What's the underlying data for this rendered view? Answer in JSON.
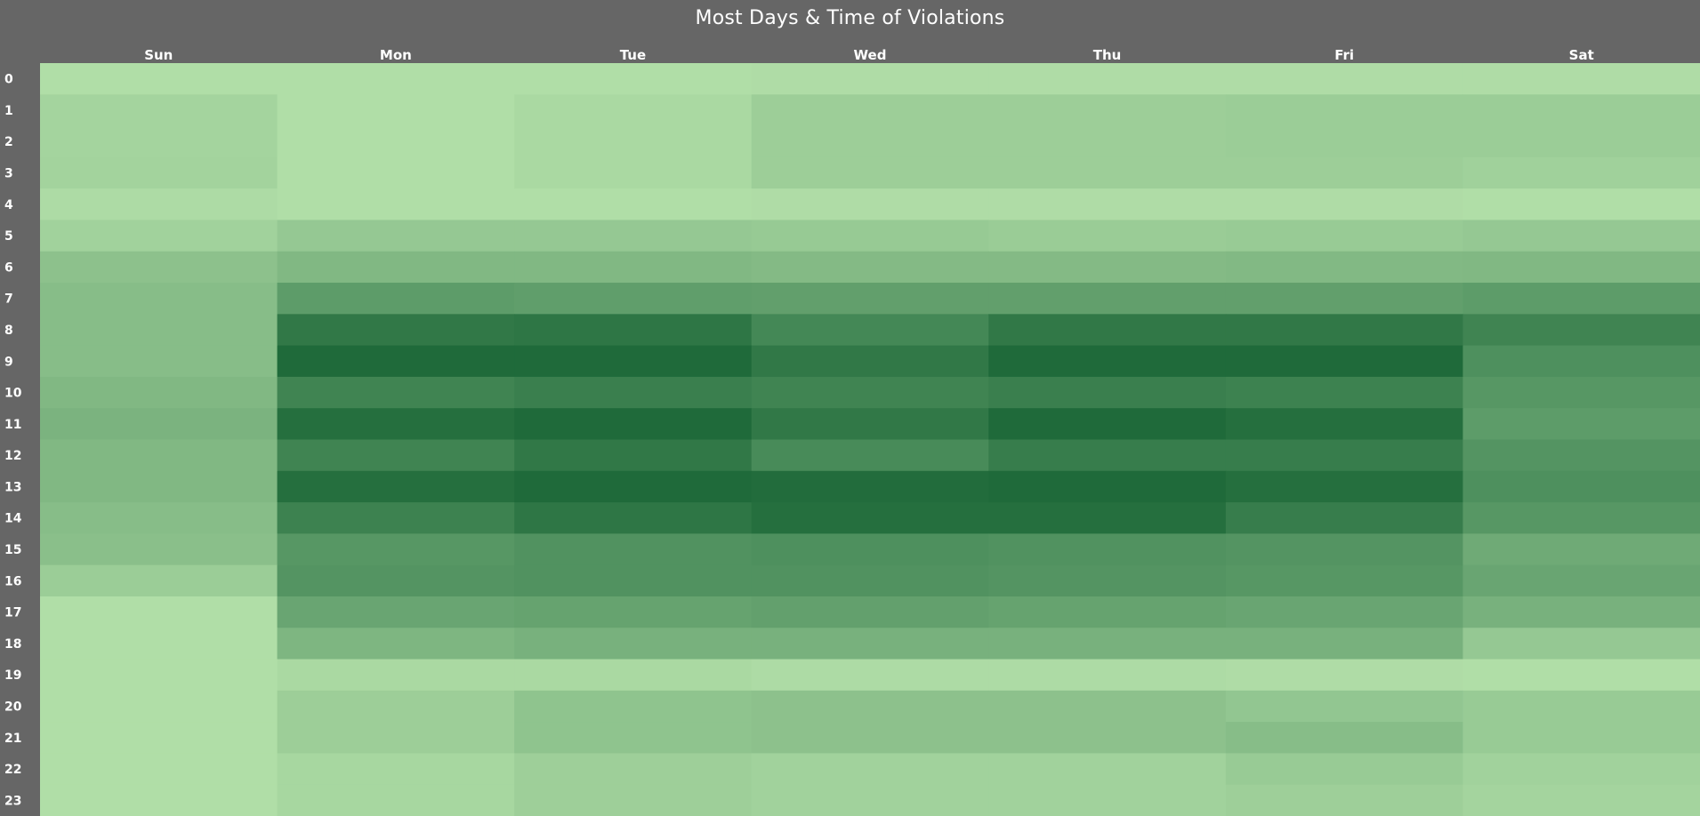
{
  "chart_data": {
    "type": "heatmap",
    "title": "Most Days & Time of Violations",
    "columns": [
      "Sun",
      "Mon",
      "Tue",
      "Wed",
      "Thu",
      "Fri",
      "Sat"
    ],
    "rows": [
      "0",
      "1",
      "2",
      "3",
      "4",
      "5",
      "6",
      "7",
      "8",
      "9",
      "10",
      "11",
      "12",
      "13",
      "14",
      "15",
      "16",
      "17",
      "18",
      "19",
      "20",
      "21",
      "22",
      "23"
    ],
    "values_unit": "relative intensity 0-100 (read from color)",
    "values": [
      [
        2,
        2,
        2,
        3,
        3,
        3,
        3
      ],
      [
        10,
        2,
        6,
        15,
        15,
        16,
        16
      ],
      [
        10,
        2,
        6,
        15,
        15,
        16,
        16
      ],
      [
        11,
        2,
        6,
        15,
        15,
        15,
        13
      ],
      [
        4,
        2,
        2,
        3,
        3,
        3,
        2
      ],
      [
        12,
        20,
        20,
        19,
        17,
        18,
        20
      ],
      [
        26,
        34,
        34,
        32,
        32,
        33,
        34
      ],
      [
        30,
        58,
        56,
        55,
        55,
        55,
        58
      ],
      [
        30,
        88,
        90,
        75,
        88,
        88,
        78
      ],
      [
        30,
        100,
        100,
        88,
        100,
        100,
        68
      ],
      [
        34,
        78,
        82,
        78,
        82,
        80,
        62
      ],
      [
        38,
        96,
        100,
        88,
        100,
        96,
        58
      ],
      [
        34,
        78,
        88,
        72,
        84,
        84,
        64
      ],
      [
        34,
        96,
        100,
        98,
        100,
        96,
        68
      ],
      [
        30,
        80,
        90,
        96,
        96,
        84,
        62
      ],
      [
        28,
        62,
        66,
        68,
        66,
        64,
        46
      ],
      [
        16,
        64,
        66,
        66,
        64,
        62,
        50
      ],
      [
        2,
        50,
        52,
        54,
        52,
        50,
        40
      ],
      [
        2,
        36,
        40,
        40,
        40,
        40,
        20
      ],
      [
        2,
        6,
        6,
        4,
        4,
        3,
        2
      ],
      [
        2,
        15,
        24,
        26,
        26,
        22,
        18
      ],
      [
        2,
        15,
        24,
        26,
        26,
        30,
        18
      ],
      [
        2,
        8,
        14,
        12,
        12,
        18,
        12
      ],
      [
        2,
        8,
        14,
        12,
        12,
        14,
        10
      ]
    ],
    "color_scale": {
      "low": "#b3e0a9",
      "high": "#1f6a3a"
    },
    "background_color": "#666666",
    "text_color": "#ffffff",
    "grid": false,
    "legend": "none"
  }
}
